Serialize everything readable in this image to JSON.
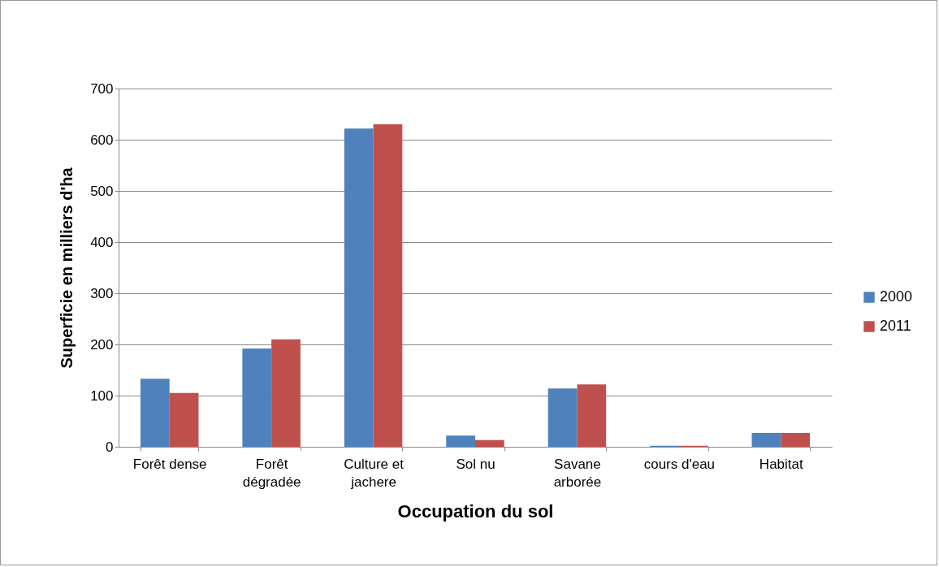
{
  "chart_data": {
    "type": "bar",
    "xlabel": "Occupation du sol",
    "ylabel": "Superficie en milliers d'ha",
    "categories": [
      "Forêt dense",
      "Forêt dégradée",
      "Culture et jachere",
      "Sol nu",
      "Savane arborée",
      "cours d'eau",
      "Habitat"
    ],
    "series": [
      {
        "name": "2000",
        "color": "#4f81bd",
        "values": [
          133,
          192,
          622,
          22,
          114,
          2,
          27
        ]
      },
      {
        "name": "2011",
        "color": "#c0504d",
        "values": [
          105,
          210,
          630,
          13,
          122,
          2,
          27
        ]
      }
    ],
    "ylim": [
      0,
      700
    ],
    "yticks": [
      0,
      100,
      200,
      300,
      400,
      500,
      600,
      700
    ],
    "grid": "y",
    "legend": "right"
  }
}
